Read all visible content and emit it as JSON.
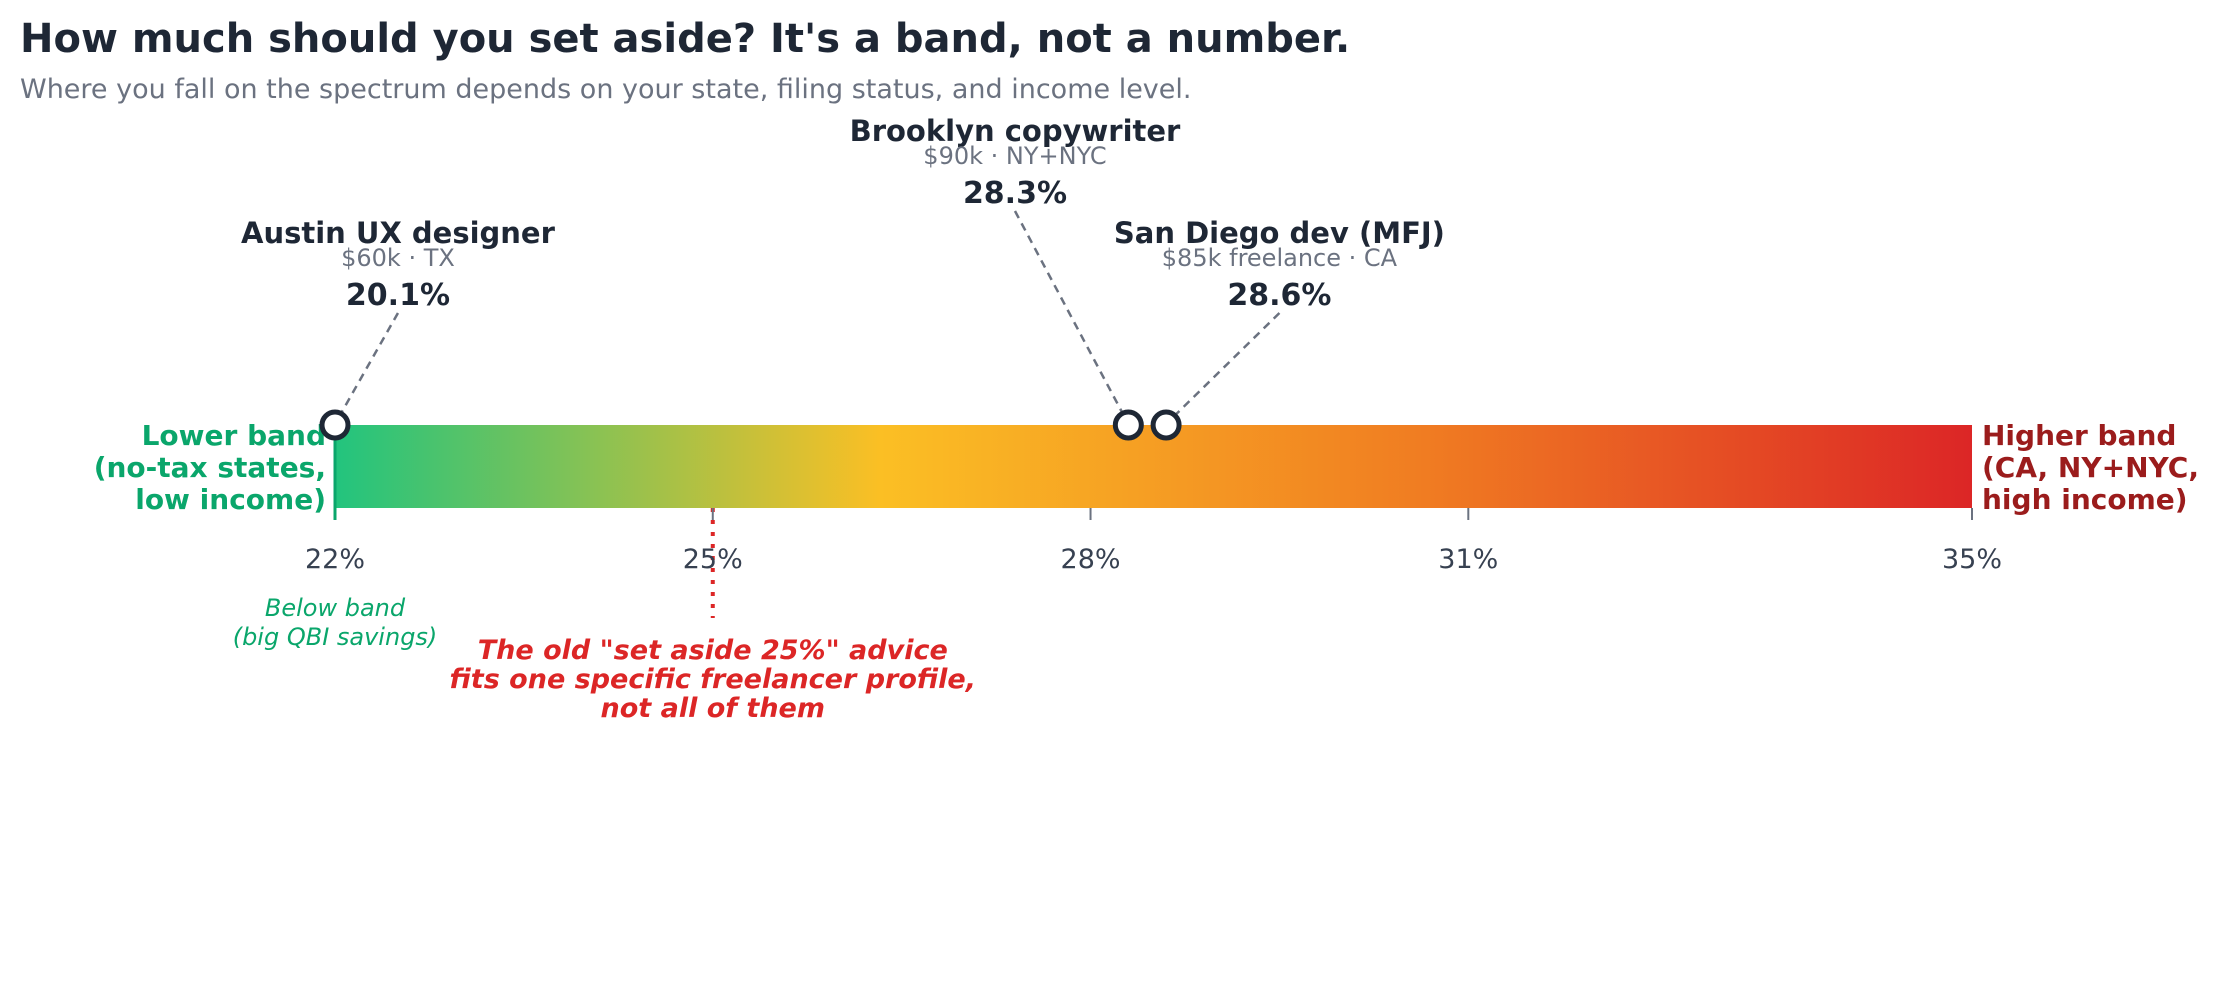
{
  "chart_data": {
    "type": "scatter",
    "title": "How much should you set aside? It's a band, not a number.",
    "subtitle": "Where you fall on the spectrum depends on your state, filing status, and income level.",
    "xlim": [
      22,
      35
    ],
    "ticks": [
      {
        "value": 22,
        "label": "22%"
      },
      {
        "value": 25,
        "label": "25%"
      },
      {
        "value": 28,
        "label": "28%"
      },
      {
        "value": 31,
        "label": "31%"
      },
      {
        "value": 35,
        "label": "35%"
      }
    ],
    "gradient_colors": [
      "#22c47e",
      "#fbbf24",
      "#f07c22",
      "#dc2626"
    ],
    "band_lower": {
      "lines": [
        "Lower band",
        "(no-tax states,",
        "low income)"
      ],
      "color": "#0aa66b"
    },
    "band_upper": {
      "lines": [
        "Higher band",
        "(CA, NY+NYC,",
        "high income)"
      ],
      "color": "#9b1c1c"
    },
    "below_band_note": {
      "lines": [
        "Below band",
        "(big QBI savings)"
      ]
    },
    "reference": {
      "value": 25,
      "lines": [
        "The old \"set aside 25%\" advice",
        "fits one specific freelancer profile,",
        "not all of them"
      ],
      "color": "#dc2626"
    },
    "profiles": [
      {
        "name": "Austin UX designer",
        "detail": "$60k · TX",
        "value": 20.1,
        "value_label": "20.1%",
        "label_center": 22.5,
        "label_level": "low"
      },
      {
        "name": "Brooklyn copywriter",
        "detail": "$90k · NY+NYC",
        "value": 28.3,
        "value_label": "28.3%",
        "label_center": 27.4,
        "label_level": "high"
      },
      {
        "name": "San Diego dev (MFJ)",
        "detail": "$85k freelance · CA",
        "value": 28.6,
        "value_label": "28.6%",
        "label_center": 29.5,
        "label_level": "low"
      }
    ]
  }
}
